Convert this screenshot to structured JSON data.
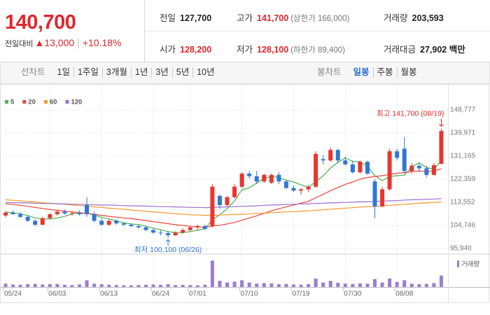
{
  "header": {
    "price": "140,700",
    "change_label": "전일대비",
    "change": "▲13,000",
    "change_rate": "+10.18%",
    "color": "#e0262c",
    "stats": [
      {
        "label": "전일",
        "value": "127,700",
        "color": "#222222"
      },
      {
        "label": "고가",
        "value": "141,700",
        "note": "(상한가 166,000)",
        "color": "#e0262c"
      },
      {
        "label": "거래량",
        "value": "203,593",
        "color": "#222222"
      },
      {
        "label": "시가",
        "value": "128,200",
        "color": "#e0262c"
      },
      {
        "label": "저가",
        "value": "128,100",
        "note": "(하한가 89,400)",
        "color": "#e0262c"
      },
      {
        "label": "거래대금",
        "value": "27,902 백만",
        "color": "#222222"
      }
    ]
  },
  "toolbar": {
    "line_chart": "선차트",
    "periods": [
      "1일",
      "1주일",
      "3개월",
      "1년",
      "3년",
      "5년",
      "10년"
    ],
    "candle_chart": "봉차트",
    "candle_periods": [
      "일봉",
      "주봉",
      "월봉"
    ],
    "selected_candle_period": 0
  },
  "chart_data": {
    "type": "candlestick",
    "categories": [
      "05/24",
      null,
      null,
      null,
      null,
      null,
      "06/03",
      null,
      null,
      null,
      null,
      null,
      null,
      "06/13",
      null,
      null,
      null,
      null,
      null,
      null,
      "06/24",
      null,
      null,
      null,
      null,
      "07/01",
      null,
      null,
      null,
      null,
      null,
      null,
      "07/10",
      null,
      null,
      null,
      null,
      null,
      null,
      "07/19",
      null,
      null,
      null,
      null,
      null,
      null,
      "07/30",
      null,
      null,
      null,
      null,
      null,
      null,
      "08/08",
      null,
      null,
      null,
      null,
      null,
      null
    ],
    "open": [
      108500,
      109600,
      109000,
      108000,
      106500,
      105000,
      107500,
      109000,
      110000,
      109300,
      109500,
      112500,
      109000,
      106500,
      105000,
      106500,
      105500,
      105000,
      104500,
      104000,
      103000,
      102000,
      101800,
      101000,
      102000,
      103000,
      104000,
      104500,
      104500,
      116000,
      112500,
      115500,
      119500,
      124500,
      123500,
      121500,
      121000,
      124000,
      121500,
      119000,
      118000,
      118500,
      119500,
      130000,
      129500,
      133500,
      129500,
      128000,
      125000,
      129000,
      121500,
      112000,
      118500,
      133000,
      134000,
      125500,
      127500,
      126500,
      124000,
      128200
    ],
    "high": [
      110200,
      110500,
      109800,
      108500,
      107000,
      108000,
      109500,
      110500,
      110800,
      110000,
      110500,
      115500,
      110000,
      107500,
      107000,
      107000,
      106000,
      105500,
      105000,
      104500,
      103500,
      103000,
      102500,
      102500,
      103500,
      104500,
      105000,
      105000,
      120500,
      116500,
      116000,
      120500,
      125000,
      125500,
      125500,
      124500,
      124500,
      125000,
      122000,
      120000,
      119000,
      120000,
      133000,
      131500,
      134500,
      134000,
      131000,
      129500,
      129500,
      129500,
      122500,
      119500,
      134000,
      134000,
      138500,
      128500,
      128500,
      127500,
      128500,
      141700
    ],
    "low": [
      107800,
      108800,
      107500,
      106000,
      104500,
      104800,
      107000,
      108500,
      108800,
      108500,
      108500,
      108000,
      106000,
      104500,
      104500,
      105000,
      104500,
      104000,
      103500,
      102500,
      101500,
      101000,
      100100,
      100800,
      101500,
      102500,
      103000,
      103000,
      104000,
      111000,
      112000,
      115000,
      119000,
      122500,
      120500,
      121000,
      120500,
      120500,
      118500,
      117500,
      116500,
      117500,
      119000,
      128000,
      129000,
      128500,
      127500,
      124500,
      124500,
      124000,
      107400,
      111500,
      118000,
      129500,
      124500,
      124500,
      125000,
      123000,
      123500,
      128100
    ],
    "close": [
      109600,
      109000,
      108000,
      106500,
      105000,
      107500,
      109000,
      110000,
      109300,
      109500,
      109000,
      109000,
      106500,
      105000,
      106500,
      105500,
      105000,
      104500,
      104000,
      103000,
      102000,
      101800,
      101000,
      102000,
      103000,
      104000,
      104500,
      103500,
      119500,
      112500,
      115500,
      119500,
      124500,
      123500,
      121500,
      124000,
      124000,
      121500,
      119000,
      118000,
      118500,
      119500,
      132000,
      129500,
      133500,
      129500,
      128000,
      125000,
      129000,
      124500,
      112000,
      118500,
      133000,
      130500,
      125500,
      127500,
      126500,
      124000,
      127700,
      140700
    ],
    "up_color": "#e8352e",
    "down_color": "#2f77d5",
    "series": [
      {
        "name": "5",
        "color": "#4caf50",
        "values": [
          109800,
          109600,
          109200,
          108500,
          107600,
          107200,
          107200,
          107600,
          108200,
          109100,
          109400,
          109400,
          108700,
          107800,
          107200,
          106500,
          105700,
          105300,
          105100,
          104400,
          103700,
          103100,
          102400,
          102000,
          102000,
          102400,
          102900,
          103400,
          106900,
          108800,
          111100,
          114100,
          118300,
          119100,
          120900,
          122600,
          123500,
          122900,
          122000,
          121300,
          120200,
          119300,
          121400,
          123700,
          126600,
          128800,
          130500,
          129100,
          129000,
          127200,
          123700,
          121800,
          123400,
          123700,
          123900,
          127100,
          128600,
          126800,
          126200,
          129300
        ]
      },
      {
        "name": "20",
        "color": "#e8453c",
        "values": [
          113000,
          112700,
          112400,
          112000,
          111600,
          111200,
          110800,
          110500,
          110200,
          109900,
          109600,
          109300,
          109000,
          108600,
          108200,
          107900,
          107600,
          107300,
          107000,
          106600,
          106200,
          105800,
          105400,
          105000,
          104700,
          104400,
          104200,
          104000,
          104500,
          104800,
          105300,
          105900,
          106700,
          107600,
          108400,
          109300,
          110300,
          111100,
          111800,
          112500,
          113200,
          113900,
          115300,
          116600,
          118000,
          119200,
          120400,
          121300,
          122400,
          123000,
          123400,
          123700,
          124200,
          124600,
          124900,
          125300,
          125500,
          125300,
          125500,
          126300
        ]
      },
      {
        "name": "60",
        "color": "#f39a2b",
        "values": [
          114500,
          114300,
          114100,
          113900,
          113700,
          113400,
          113200,
          113000,
          112800,
          112500,
          112300,
          112100,
          111800,
          111600,
          111300,
          111100,
          110900,
          110600,
          110400,
          110100,
          109900,
          109700,
          109400,
          109200,
          109000,
          108800,
          108700,
          108600,
          108600,
          108700,
          108800,
          108900,
          109000,
          109100,
          109300,
          109400,
          109600,
          109700,
          109900,
          110000,
          110200,
          110300,
          110500,
          110700,
          110900,
          111100,
          111300,
          111500,
          111700,
          111900,
          112000,
          112200,
          112400,
          112600,
          112800,
          113000,
          113200,
          113300,
          113500,
          113700
        ]
      },
      {
        "name": "120",
        "color": "#9b6fd0",
        "values": [
          113500,
          113400,
          113400,
          113300,
          113200,
          113100,
          113100,
          113000,
          112900,
          112800,
          112800,
          112700,
          112600,
          112500,
          112500,
          112400,
          112300,
          112200,
          112200,
          112100,
          112000,
          111900,
          111900,
          111800,
          111700,
          111600,
          111600,
          111500,
          111600,
          111700,
          111800,
          111900,
          112000,
          112100,
          112200,
          112400,
          112500,
          112600,
          112700,
          112800,
          112900,
          113000,
          113100,
          113200,
          113300,
          113400,
          113500,
          113600,
          113700,
          113800,
          113900,
          114000,
          114100,
          114200,
          114400,
          114500,
          114600,
          114700,
          114800,
          114900
        ]
      }
    ],
    "ylim": [
      95940,
      148777
    ],
    "yticks": [
      {
        "value": 148777,
        "label": "148,777"
      },
      {
        "value": 139971,
        "label": "139,971"
      },
      {
        "value": 131165,
        "label": "131,165"
      },
      {
        "value": 122359,
        "label": "122,359"
      },
      {
        "value": 113552,
        "label": "113,552"
      },
      {
        "value": 104746,
        "label": "104,746"
      },
      {
        "value": 95940,
        "label": "95,940"
      }
    ],
    "grid": true,
    "volume": {
      "name": "거래량",
      "color": "#9b7fcf",
      "ylim": [
        0,
        560000
      ],
      "values": [
        60000,
        45000,
        40000,
        50000,
        55000,
        45000,
        50000,
        55000,
        40000,
        35000,
        45000,
        120000,
        60000,
        50000,
        40000,
        35000,
        30000,
        30000,
        35000,
        40000,
        45000,
        40000,
        50000,
        35000,
        40000,
        35000,
        30000,
        40000,
        470000,
        110000,
        80000,
        95000,
        120000,
        80000,
        60000,
        70000,
        65000,
        50000,
        55000,
        45000,
        40000,
        50000,
        150000,
        80000,
        110000,
        75000,
        60000,
        55000,
        65000,
        60000,
        140000,
        80000,
        150000,
        90000,
        120000,
        60000,
        50000,
        55000,
        70000,
        203593
      ]
    },
    "high_annotation": {
      "text": "최고 141,700 (08/19)",
      "color": "#e0262c"
    },
    "low_annotation": {
      "text": "최저 100,100 (06/26)",
      "color": "#2f77d5"
    }
  }
}
